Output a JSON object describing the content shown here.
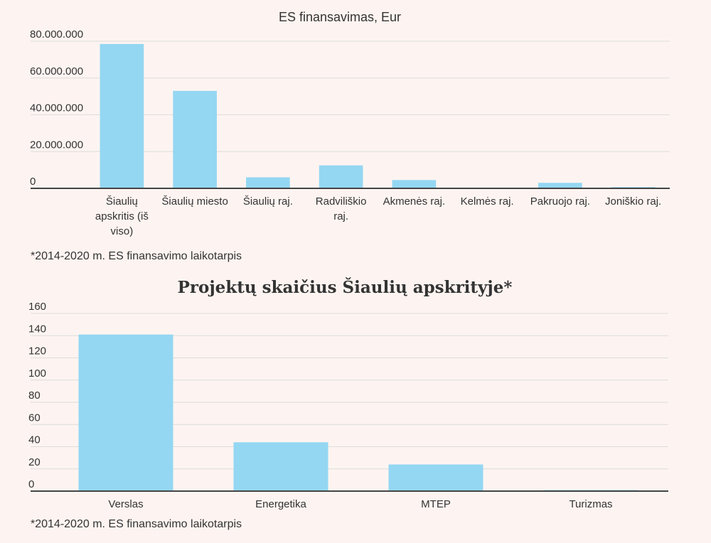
{
  "chart_data": [
    {
      "type": "bar",
      "title": "ES finansavimas, Eur",
      "categories": [
        "Šiaulių apskritis (iš viso)",
        "Šiaulių miesto",
        "Šiaulių raj.",
        "Radviliškio raj.",
        "Akmenės raj.",
        "Kelmės raj.",
        "Pakruojo raj.",
        "Joniškio raj."
      ],
      "category_lines": [
        [
          "Šiaulių",
          "apskritis (iš",
          "viso)"
        ],
        [
          "Šiaulių miesto"
        ],
        [
          "Šiaulių raj."
        ],
        [
          "Radviliškio",
          "raj."
        ],
        [
          "Akmenės raj."
        ],
        [
          "Kelmės raj."
        ],
        [
          "Pakruojo raj."
        ],
        [
          "Joniškio raj."
        ]
      ],
      "values": [
        78500000,
        53000000,
        6000000,
        12500000,
        4500000,
        0,
        3000000,
        700000
      ],
      "ylim": [
        0,
        80000000
      ],
      "yticks": [
        0,
        20000000,
        40000000,
        60000000,
        80000000
      ],
      "ytick_labels": [
        "0",
        "20.000.000",
        "40.000.000",
        "60.000.000",
        "80.000.000"
      ],
      "xlabel": "",
      "ylabel": "",
      "color": "#94d7f2",
      "grid": true,
      "footnote": "*2014-2020 m. ES finansavimo laikotarpis"
    },
    {
      "type": "bar",
      "title": "Projektų skaičius Šiaulių apskrityje*",
      "categories": [
        "Verslas",
        "Energetika",
        "MTEP",
        "Turizmas"
      ],
      "category_lines": [
        [
          "Verslas"
        ],
        [
          "Energetika"
        ],
        [
          "MTEP"
        ],
        [
          "Turizmas"
        ]
      ],
      "values": [
        141,
        44,
        24,
        1
      ],
      "ylim": [
        0,
        160
      ],
      "yticks": [
        0,
        20,
        40,
        60,
        80,
        100,
        120,
        140,
        160
      ],
      "ytick_labels": [
        "0",
        "20",
        "40",
        "60",
        "80",
        "100",
        "120",
        "140",
        "160"
      ],
      "xlabel": "",
      "ylabel": "",
      "color": "#94d7f2",
      "grid": true,
      "footnote": "*2014-2020 m. ES finansavimo laikotarpis"
    }
  ]
}
